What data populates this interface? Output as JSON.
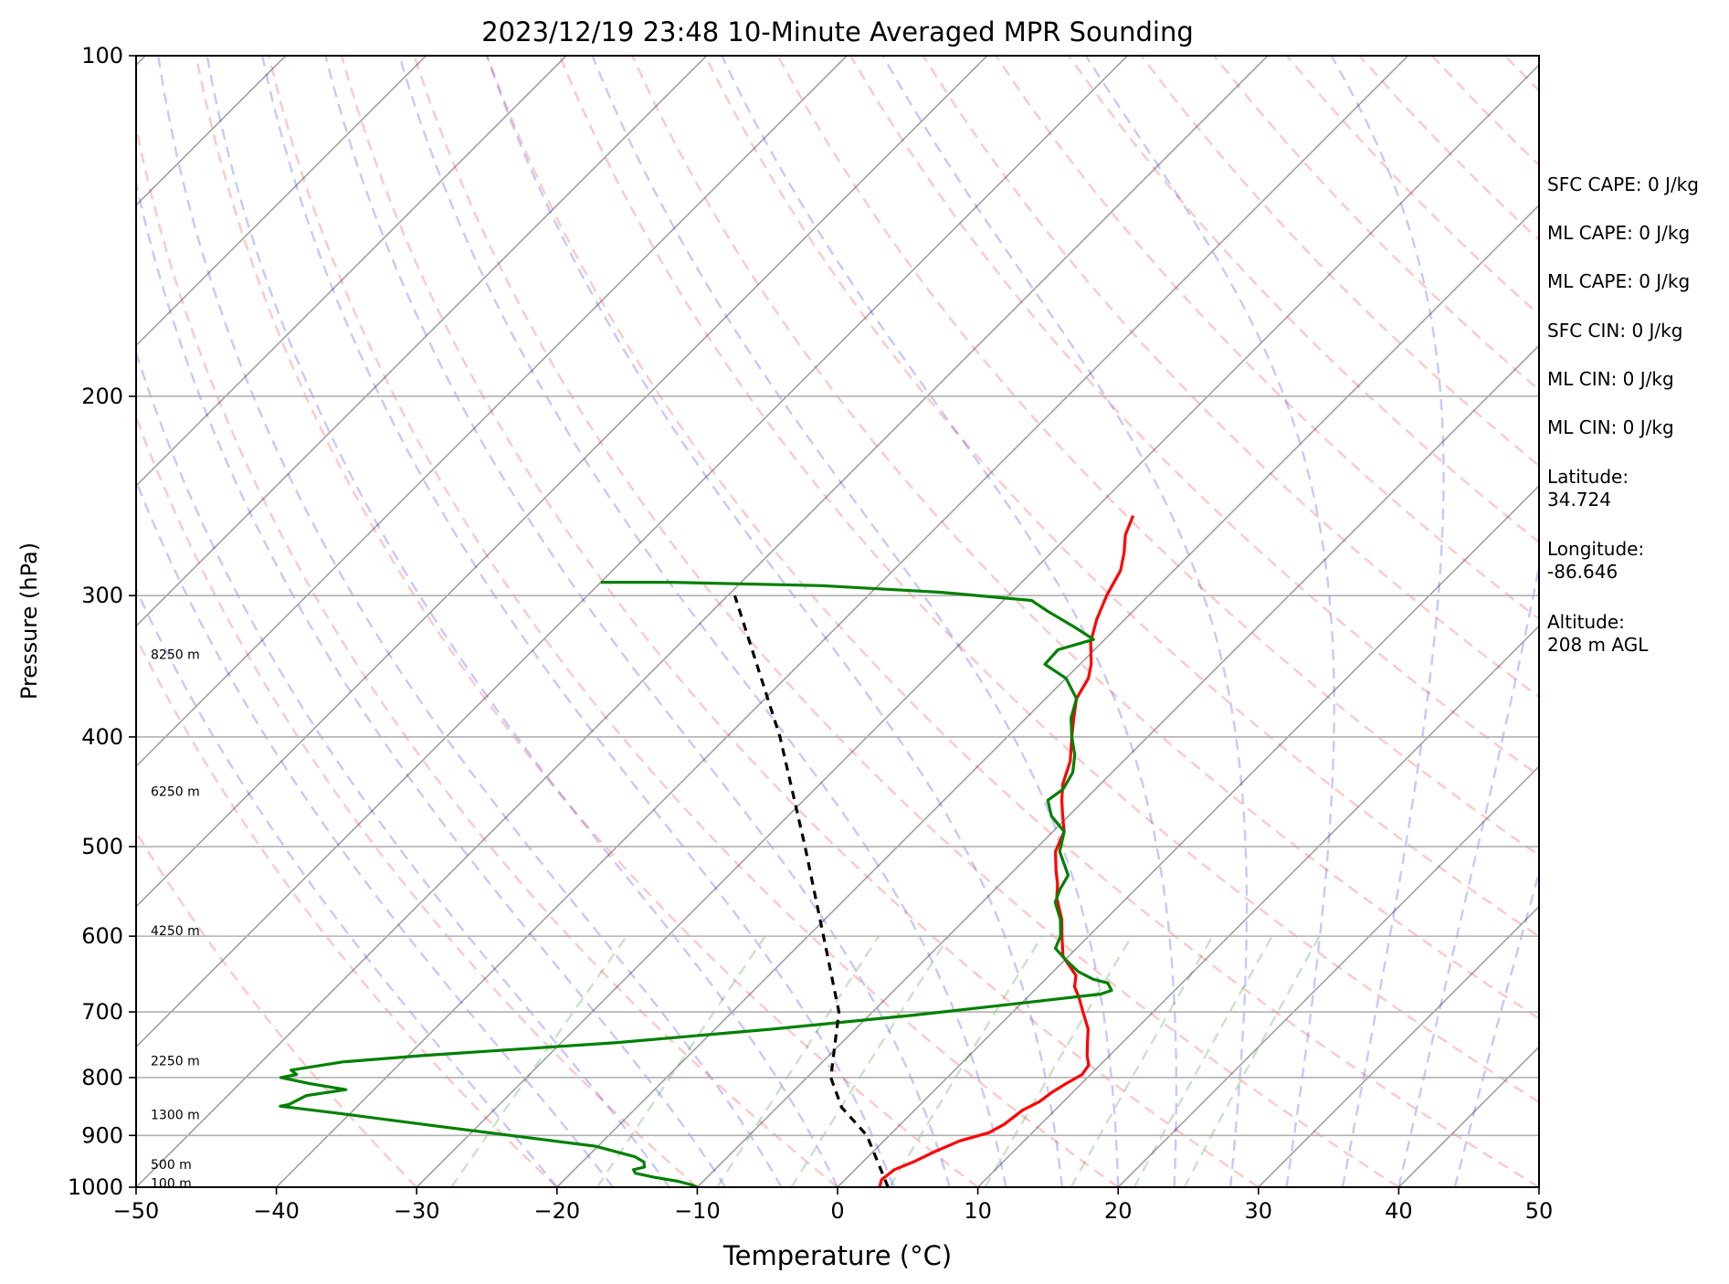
{
  "chart_data": {
    "type": "line",
    "title": "2023/12/19 23:48 10-Minute Averaged MPR Sounding",
    "xlabel": "Temperature (°C)",
    "ylabel": "Pressure (hPa)",
    "xlim": [
      -50,
      50
    ],
    "ylim": [
      1000,
      100
    ],
    "yscale": "log",
    "skew": true,
    "grid": true,
    "x_ticks": [
      -50,
      -40,
      -30,
      -20,
      -10,
      0,
      10,
      20,
      30,
      40,
      50
    ],
    "x_tick_labels": [
      "−50",
      "−40",
      "−30",
      "−20",
      "−10",
      "0",
      "10",
      "20",
      "30",
      "40",
      "50"
    ],
    "y_ticks": [
      100,
      200,
      300,
      400,
      500,
      600,
      700,
      800,
      900,
      1000
    ],
    "y_tick_labels": [
      "100",
      "200",
      "300",
      "400",
      "500",
      "600",
      "700",
      "800",
      "900",
      "1000"
    ],
    "series": [
      {
        "color": "#ff0000",
        "points": [
          [
            1000,
            3.0
          ],
          [
            985,
            2.6
          ],
          [
            965,
            2.8
          ],
          [
            950,
            3.6
          ],
          [
            930,
            4.4
          ],
          [
            910,
            5.4
          ],
          [
            895,
            6.9
          ],
          [
            880,
            7.4
          ],
          [
            855,
            7.7
          ],
          [
            840,
            8.3
          ],
          [
            825,
            8.5
          ],
          [
            810,
            8.9
          ],
          [
            795,
            9.4
          ],
          [
            780,
            9.2
          ],
          [
            765,
            8.4
          ],
          [
            745,
            7.5
          ],
          [
            725,
            6.6
          ],
          [
            700,
            5.0
          ],
          [
            680,
            3.7
          ],
          [
            665,
            2.6
          ],
          [
            650,
            1.9
          ],
          [
            625,
            -0.4
          ],
          [
            600,
            -1.9
          ],
          [
            580,
            -3.1
          ],
          [
            555,
            -5.0
          ],
          [
            540,
            -5.9
          ],
          [
            525,
            -7.0
          ],
          [
            505,
            -8.4
          ],
          [
            485,
            -9.2
          ],
          [
            470,
            -10.4
          ],
          [
            455,
            -11.6
          ],
          [
            440,
            -12.7
          ],
          [
            420,
            -13.8
          ],
          [
            400,
            -15.4
          ],
          [
            385,
            -16.6
          ],
          [
            370,
            -17.8
          ],
          [
            355,
            -18.4
          ],
          [
            345,
            -19.2
          ],
          [
            330,
            -20.8
          ],
          [
            315,
            -22.0
          ],
          [
            300,
            -23.0
          ],
          [
            285,
            -23.8
          ],
          [
            275,
            -24.8
          ],
          [
            265,
            -26.0
          ],
          [
            255,
            -26.8
          ]
        ]
      },
      {
        "color": "#008000",
        "points": [
          [
            1000,
            -10.0
          ],
          [
            995,
            -10.6
          ],
          [
            988,
            -11.8
          ],
          [
            980,
            -13.8
          ],
          [
            972,
            -15.4
          ],
          [
            965,
            -15.8
          ],
          [
            960,
            -15.2
          ],
          [
            950,
            -15.6
          ],
          [
            940,
            -16.6
          ],
          [
            920,
            -20.2
          ],
          [
            900,
            -27.0
          ],
          [
            880,
            -34.0
          ],
          [
            860,
            -41.0
          ],
          [
            848,
            -45.5
          ],
          [
            845,
            -45.0
          ],
          [
            830,
            -44.4
          ],
          [
            820,
            -42.0
          ],
          [
            810,
            -45.0
          ],
          [
            800,
            -47.5
          ],
          [
            795,
            -46.6
          ],
          [
            788,
            -47.3
          ],
          [
            775,
            -44.2
          ],
          [
            765,
            -39.0
          ],
          [
            745,
            -26.0
          ],
          [
            725,
            -16.0
          ],
          [
            705,
            -7.0
          ],
          [
            690,
            -1.0
          ],
          [
            675,
            5.0
          ],
          [
            670,
            5.5
          ],
          [
            660,
            4.7
          ],
          [
            655,
            3.4
          ],
          [
            645,
            1.8
          ],
          [
            630,
            0.1
          ],
          [
            615,
            -1.5
          ],
          [
            600,
            -2.0
          ],
          [
            580,
            -3.2
          ],
          [
            560,
            -4.8
          ],
          [
            545,
            -5.4
          ],
          [
            530,
            -5.8
          ],
          [
            505,
            -8.1
          ],
          [
            485,
            -9.2
          ],
          [
            470,
            -11.2
          ],
          [
            455,
            -12.6
          ],
          [
            445,
            -12.3
          ],
          [
            430,
            -12.8
          ],
          [
            415,
            -13.9
          ],
          [
            400,
            -15.4
          ],
          [
            385,
            -16.8
          ],
          [
            370,
            -17.8
          ],
          [
            355,
            -20.0
          ],
          [
            345,
            -22.5
          ],
          [
            335,
            -22.6
          ],
          [
            328,
            -20.8
          ],
          [
            320,
            -23.0
          ],
          [
            310,
            -26.0
          ],
          [
            303,
            -28.0
          ],
          [
            298,
            -35.0
          ],
          [
            294,
            -44.0
          ],
          [
            292,
            -55.0
          ],
          [
            292,
            -60.0
          ]
        ]
      },
      {
        "color": "#000000",
        "dash": true,
        "points": [
          [
            1000,
            3.6
          ],
          [
            900,
            -1.6
          ],
          [
            850,
            -5.4
          ],
          [
            800,
            -8.3
          ],
          [
            700,
            -12.4
          ],
          [
            600,
            -18.9
          ],
          [
            500,
            -26.6
          ],
          [
            400,
            -36.2
          ],
          [
            300,
            -49.5
          ]
        ]
      }
    ],
    "height_labels": [
      {
        "text": "8250 m",
        "p": 338
      },
      {
        "text": "6250 m",
        "p": 447
      },
      {
        "text": "4250 m",
        "p": 593
      },
      {
        "text": "2250 m",
        "p": 773
      },
      {
        "text": "1300 m",
        "p": 863
      },
      {
        "text": "500 m",
        "p": 955
      },
      {
        "text": "100 m",
        "p": 992
      }
    ]
  },
  "info": [
    "SFC CAPE: 0 J/kg",
    "ML CAPE: 0 J/kg",
    "ML CAPE: 0 J/kg",
    "SFC CIN: 0 J/kg",
    "ML CIN: 0 J/kg",
    "ML CIN: 0 J/kg",
    "Latitude:\n34.724",
    "Longitude:\n-86.646",
    "Altitude:\n208 m AGL"
  ]
}
